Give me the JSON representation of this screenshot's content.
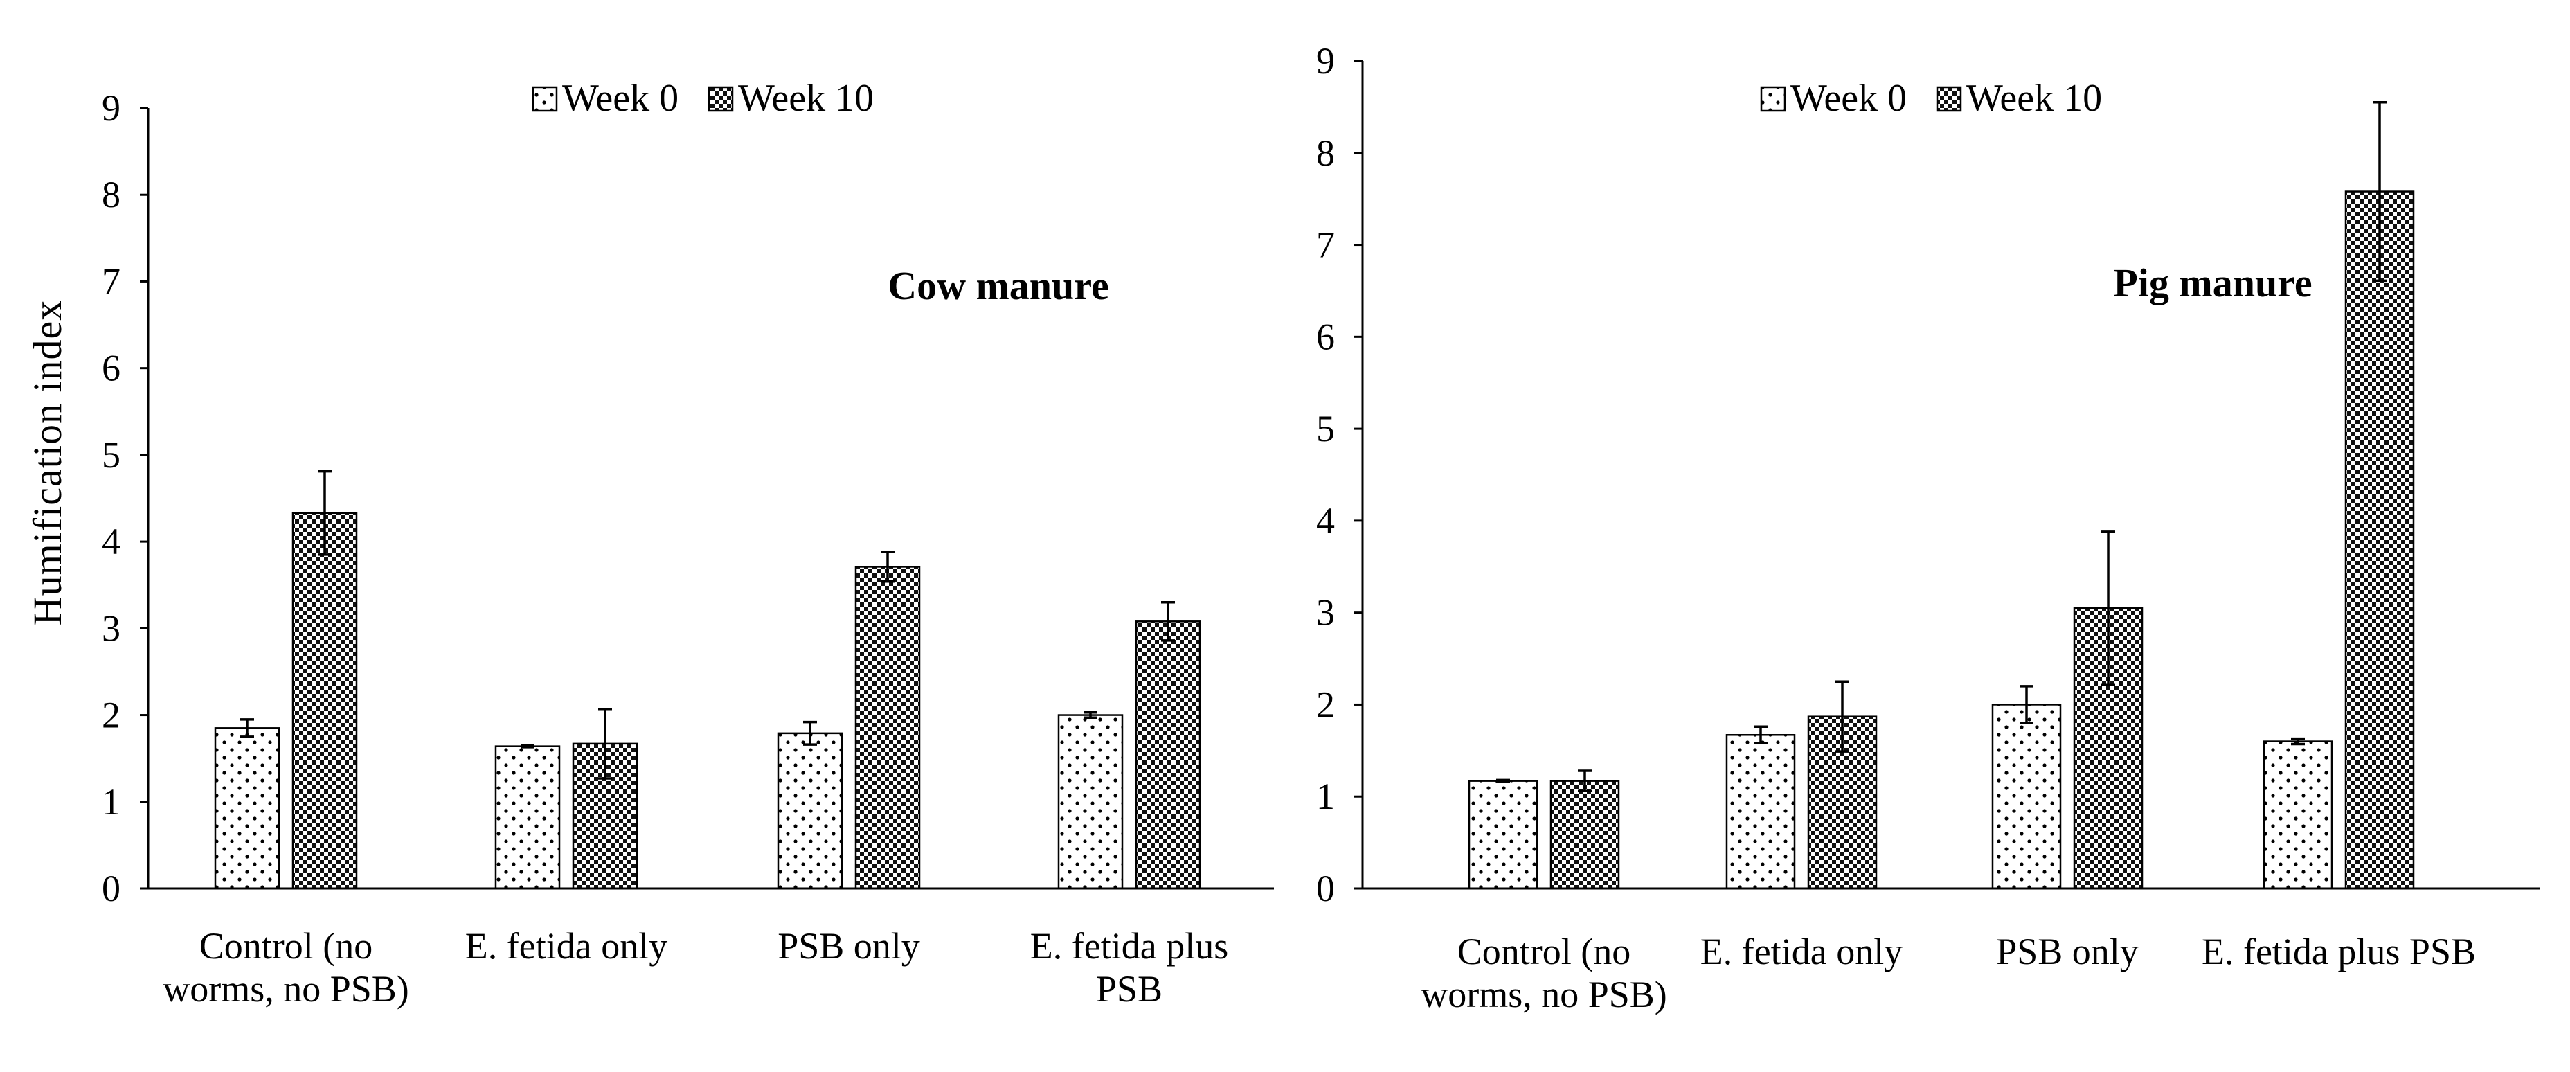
{
  "colors": {
    "axis": "#000000",
    "bar_fill": "#ffffff",
    "week10_pattern": "#111111"
  },
  "chart_data": [
    {
      "type": "bar",
      "title": "Cow manure",
      "xlabel": "",
      "ylabel": "Humification index",
      "ylim": [
        0,
        9
      ],
      "yticks": [
        "0",
        "1",
        "2",
        "3",
        "4",
        "5",
        "6",
        "7",
        "8",
        "9"
      ],
      "legend": "top-center",
      "categories": [
        [
          "Control (no",
          "worms, no PSB)"
        ],
        [
          "E. fetida only"
        ],
        [
          "PSB only"
        ],
        [
          "E. fetida plus",
          "PSB"
        ]
      ],
      "series": [
        {
          "name": "Week 0",
          "pattern": "dots-sparse",
          "values": [
            1.85,
            1.64,
            1.79,
            2.0
          ],
          "errors": [
            0.1,
            0.01,
            0.13,
            0.03
          ]
        },
        {
          "name": "Week 10",
          "pattern": "dense-check",
          "values": [
            4.33,
            1.67,
            3.71,
            3.08
          ],
          "errors": [
            0.48,
            0.4,
            0.17,
            0.22
          ]
        }
      ]
    },
    {
      "type": "bar",
      "title": "Pig manure",
      "xlabel": "",
      "ylabel": "",
      "ylim": [
        0,
        9
      ],
      "yticks": [
        "0",
        "1",
        "2",
        "3",
        "4",
        "5",
        "6",
        "7",
        "8",
        "9"
      ],
      "legend": "top-center",
      "categories": [
        [
          "Control (no",
          "worms, no PSB)"
        ],
        [
          "E. fetida only"
        ],
        [
          "PSB only"
        ],
        [
          "E. fetida plus PSB"
        ]
      ],
      "series": [
        {
          "name": "Week 0",
          "pattern": "dots-sparse",
          "values": [
            1.17,
            1.67,
            2.0,
            1.6
          ],
          "errors": [
            0.01,
            0.09,
            0.2,
            0.03
          ]
        },
        {
          "name": "Week 10",
          "pattern": "dense-check",
          "values": [
            1.17,
            1.87,
            3.05,
            7.58
          ],
          "errors": [
            0.11,
            0.38,
            0.83,
            0.97
          ]
        }
      ]
    }
  ]
}
